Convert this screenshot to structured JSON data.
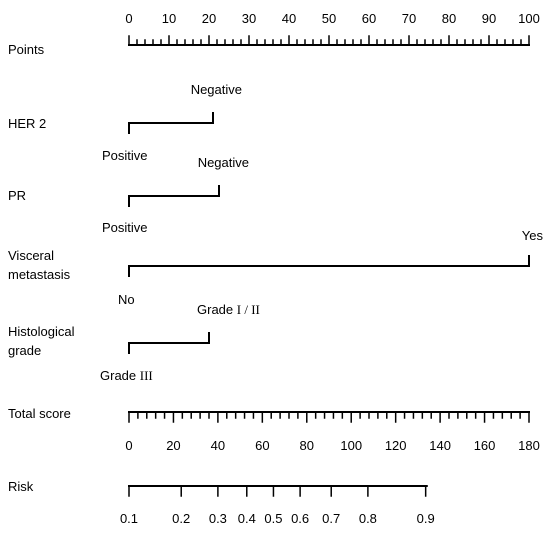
{
  "chart_data": {
    "type": "nomogram",
    "colors": {
      "line": "#000000",
      "background": "#ffffff"
    },
    "points": {
      "label": "Points",
      "min": 0,
      "max": 100,
      "major_step": 10,
      "minor_step": 2,
      "tick_labels": [
        "0",
        "10",
        "20",
        "30",
        "40",
        "50",
        "60",
        "70",
        "80",
        "90",
        "100"
      ]
    },
    "predictors": [
      {
        "label": "HER 2",
        "range": [
          0,
          21
        ],
        "levels": [
          {
            "name": "Positive",
            "points": 0
          },
          {
            "name": "Negative",
            "points": 21
          }
        ]
      },
      {
        "label": "PR",
        "range": [
          0,
          22.5
        ],
        "levels": [
          {
            "name": "Positive",
            "points": 0
          },
          {
            "name": "Negative",
            "points": 22.5
          }
        ]
      },
      {
        "label_lines": [
          "Visceral",
          "metastasis"
        ],
        "range": [
          0,
          100
        ],
        "levels": [
          {
            "name": "No",
            "points": 0
          },
          {
            "name": "Yes",
            "points": 100
          }
        ]
      },
      {
        "label_lines": [
          "Histological",
          "grade"
        ],
        "range": [
          0,
          20
        ],
        "levels": [
          {
            "name": "Grade III",
            "prefix": "Grade ",
            "roman": "III",
            "points": 0
          },
          {
            "name": "Grade I/II",
            "prefix": "Grade ",
            "roman": "I / II",
            "points": 20
          }
        ]
      }
    ],
    "total_score": {
      "label": "Total score",
      "min": 0,
      "max": 180,
      "major_step": 20,
      "minor_step": 4,
      "tick_labels": [
        "0",
        "20",
        "40",
        "60",
        "80",
        "100",
        "120",
        "140",
        "160",
        "180"
      ]
    },
    "risk": {
      "label": "Risk",
      "total_score_range": [
        0,
        134
      ],
      "ticks": [
        {
          "label": "0.1",
          "total": 0
        },
        {
          "label": "0.2",
          "total": 23.5
        },
        {
          "label": "0.3",
          "total": 40
        },
        {
          "label": "0.4",
          "total": 53
        },
        {
          "label": "0.5",
          "total": 65
        },
        {
          "label": "0.6",
          "total": 77
        },
        {
          "label": "0.7",
          "total": 91
        },
        {
          "label": "0.8",
          "total": 107.5
        },
        {
          "label": "0.9",
          "total": 133.5
        }
      ]
    }
  }
}
